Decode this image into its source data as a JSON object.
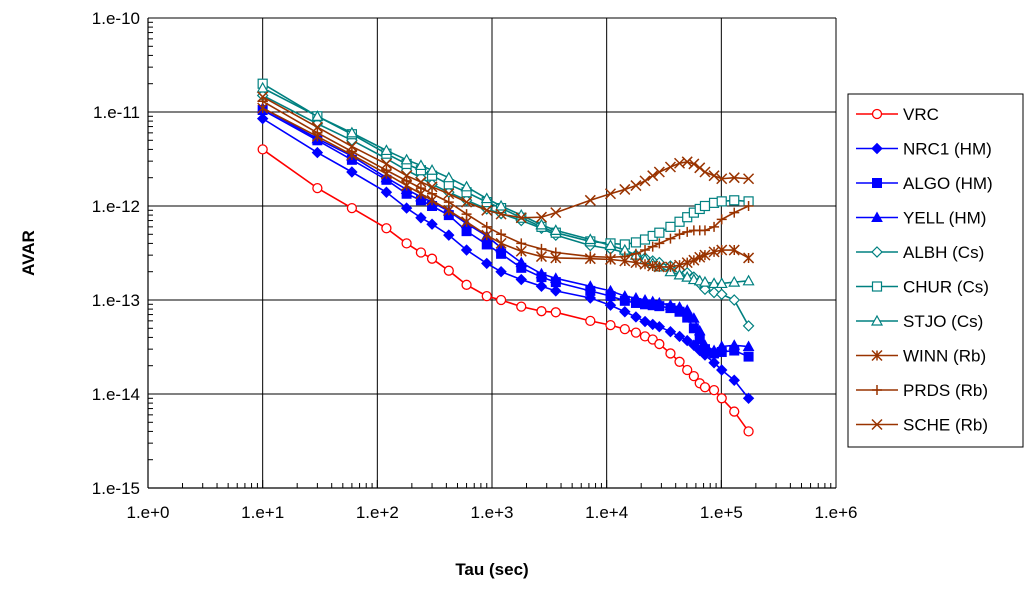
{
  "chart_data": {
    "type": "line",
    "title": "",
    "xlabel": "Tau (sec)",
    "ylabel": "AVAR",
    "x_scale": "log",
    "y_scale": "log",
    "xlim": [
      1,
      1000000
    ],
    "ylim": [
      1e-15,
      1e-10
    ],
    "x_ticks": [
      {
        "value": 1,
        "label": "1.e+0"
      },
      {
        "value": 10,
        "label": "1.e+1"
      },
      {
        "value": 100,
        "label": "1.e+2"
      },
      {
        "value": 1000,
        "label": "1.e+3"
      },
      {
        "value": 10000,
        "label": "1.e+4"
      },
      {
        "value": 100000,
        "label": "1.e+5"
      },
      {
        "value": 1000000,
        "label": "1.e+6"
      }
    ],
    "y_ticks": [
      {
        "value": 1e-10,
        "label": "1.e-10"
      },
      {
        "value": 1e-11,
        "label": "1.e-11"
      },
      {
        "value": 1e-12,
        "label": "1.e-12"
      },
      {
        "value": 1e-13,
        "label": "1.e-13"
      },
      {
        "value": 1e-14,
        "label": "1.e-14"
      },
      {
        "value": 1e-15,
        "label": "1.e-15"
      }
    ],
    "grid": true,
    "legend_position": "right",
    "series": [
      {
        "name": "VRC",
        "color": "#ff0000",
        "marker": "circle-open",
        "x": [
          10,
          30,
          60,
          120,
          180,
          240,
          300,
          420,
          600,
          900,
          1200,
          1800,
          2700,
          3600,
          7200,
          10800,
          14400,
          18000,
          21600,
          25200,
          28800,
          36000,
          43200,
          50400,
          57600,
          64800,
          72000,
          86400,
          100800,
          129600,
          172800
        ],
        "y": [
          4e-12,
          1.55e-12,
          9.5e-13,
          5.8e-13,
          4e-13,
          3.2e-13,
          2.75e-13,
          2.05e-13,
          1.45e-13,
          1.1e-13,
          1e-13,
          8.5e-14,
          7.6e-14,
          7.4e-14,
          6e-14,
          5.4e-14,
          4.9e-14,
          4.5e-14,
          4.1e-14,
          3.8e-14,
          3.4e-14,
          2.7e-14,
          2.2e-14,
          1.8e-14,
          1.55e-14,
          1.3e-14,
          1.18e-14,
          1.1e-14,
          9e-15,
          6.5e-15,
          4e-15
        ]
      },
      {
        "name": "NRC1 (HM)",
        "color": "#0000ff",
        "marker": "diamond",
        "x": [
          10,
          30,
          60,
          120,
          180,
          240,
          300,
          420,
          600,
          900,
          1200,
          1800,
          2700,
          3600,
          7200,
          10800,
          14400,
          18000,
          21600,
          25200,
          28800,
          36000,
          43200,
          50400,
          57600,
          64800,
          72000,
          86400,
          100800,
          129600,
          172800
        ],
        "y": [
          8.5e-12,
          3.7e-12,
          2.3e-12,
          1.4e-12,
          9.5e-13,
          7.5e-13,
          6.4e-13,
          4.9e-13,
          3.4e-13,
          2.45e-13,
          2e-13,
          1.65e-13,
          1.4e-13,
          1.25e-13,
          1.05e-13,
          8.8e-14,
          7.5e-14,
          6.6e-14,
          5.9e-14,
          5.5e-14,
          5.2e-14,
          4.6e-14,
          4.1e-14,
          3.7e-14,
          3.3e-14,
          2.9e-14,
          2.6e-14,
          2.15e-14,
          1.8e-14,
          1.4e-14,
          9e-15
        ]
      },
      {
        "name": "ALGO (HM)",
        "color": "#0000ff",
        "marker": "square",
        "x": [
          10,
          30,
          60,
          120,
          180,
          240,
          300,
          420,
          600,
          900,
          1200,
          1800,
          2700,
          3600,
          7200,
          10800,
          14400,
          18000,
          21600,
          25200,
          28800,
          36000,
          43200,
          50400,
          57600,
          64800,
          72000,
          86400,
          100800,
          129600,
          172800
        ],
        "y": [
          1.05e-11,
          5e-12,
          3.1e-12,
          1.9e-12,
          1.35e-12,
          1.15e-12,
          1e-12,
          8e-13,
          5.4e-13,
          3.9e-13,
          3.1e-13,
          2.2e-13,
          1.75e-13,
          1.55e-13,
          1.25e-13,
          1.1e-13,
          9.8e-14,
          9.3e-14,
          9e-14,
          8.8e-14,
          8.6e-14,
          8.2e-14,
          7.5e-14,
          6.5e-14,
          5e-14,
          3.8e-14,
          3e-14,
          2.7e-14,
          2.8e-14,
          2.9e-14,
          2.5e-14
        ]
      },
      {
        "name": "YELL (HM)",
        "color": "#0000ff",
        "marker": "triangle",
        "x": [
          10,
          30,
          60,
          120,
          180,
          240,
          300,
          420,
          600,
          900,
          1200,
          1800,
          2700,
          3600,
          7200,
          10800,
          14400,
          18000,
          21600,
          25200,
          28800,
          36000,
          43200,
          50400,
          57600,
          64800,
          72000,
          86400,
          100800,
          129600,
          172800
        ],
        "y": [
          1.1e-11,
          5.2e-12,
          3.4e-12,
          2e-12,
          1.5e-12,
          1.25e-12,
          1.1e-12,
          8.8e-13,
          6.5e-13,
          4.8e-13,
          3.6e-13,
          2.5e-13,
          1.9e-13,
          1.7e-13,
          1.4e-13,
          1.25e-13,
          1.1e-13,
          1.05e-13,
          1e-13,
          9.6e-14,
          9.3e-14,
          8.8e-14,
          8.4e-14,
          7.8e-14,
          6.4e-14,
          4.7e-14,
          3.3e-14,
          2.9e-14,
          3.2e-14,
          3.3e-14,
          3.2e-14
        ]
      },
      {
        "name": "ALBH (Cs)",
        "color": "#008080",
        "marker": "diamond-open",
        "x": [
          10,
          30,
          60,
          120,
          180,
          240,
          300,
          420,
          600,
          900,
          1200,
          1800,
          2700,
          3600,
          7200,
          10800,
          14400,
          18000,
          21600,
          25200,
          28800,
          36000,
          43200,
          50400,
          57600,
          64800,
          72000,
          86400,
          100800,
          129600,
          172800
        ],
        "y": [
          1.5e-11,
          7.5e-12,
          5e-12,
          3.2e-12,
          2.4e-12,
          2e-12,
          1.7e-12,
          1.4e-12,
          1.15e-12,
          9.3e-13,
          8.3e-13,
          7e-13,
          5.8e-13,
          4.9e-13,
          3.8e-13,
          3.5e-13,
          3.2e-13,
          3e-13,
          2.8e-13,
          2.6e-13,
          2.5e-13,
          2.3e-13,
          2.1e-13,
          1.95e-13,
          1.75e-13,
          1.5e-13,
          1.3e-13,
          1.2e-13,
          1.15e-13,
          1e-13,
          5.3e-14
        ]
      },
      {
        "name": "CHUR (Cs)",
        "color": "#008080",
        "marker": "square-open",
        "x": [
          10,
          30,
          60,
          120,
          180,
          240,
          300,
          420,
          600,
          900,
          1200,
          1800,
          2700,
          3600,
          7200,
          10800,
          14400,
          18000,
          21600,
          25200,
          28800,
          36000,
          43200,
          50400,
          57600,
          64800,
          72000,
          86400,
          100800,
          129600,
          172800
        ],
        "y": [
          2e-11,
          9e-12,
          5.8e-12,
          3.6e-12,
          2.8e-12,
          2.4e-12,
          2.1e-12,
          1.7e-12,
          1.4e-12,
          1.1e-12,
          9.5e-13,
          7.5e-13,
          6e-13,
          5.2e-13,
          4.2e-13,
          4e-13,
          3.9e-13,
          4.1e-13,
          4.4e-13,
          4.8e-13,
          5.2e-13,
          6e-13,
          6.8e-13,
          7.6e-13,
          8.5e-13,
          9.3e-13,
          1e-12,
          1.08e-12,
          1.12e-12,
          1.15e-12,
          1.12e-12
        ]
      },
      {
        "name": "STJO (Cs)",
        "color": "#008080",
        "marker": "triangle-open",
        "x": [
          10,
          30,
          60,
          120,
          180,
          240,
          300,
          420,
          600,
          900,
          1200,
          1800,
          2700,
          3600,
          7200,
          10800,
          14400,
          18000,
          21600,
          25200,
          28800,
          36000,
          43200,
          50400,
          57600,
          64800,
          72000,
          86400,
          100800,
          129600,
          172800
        ],
        "y": [
          1.8e-11,
          9e-12,
          6e-12,
          3.9e-12,
          3.1e-12,
          2.7e-12,
          2.4e-12,
          2e-12,
          1.6e-12,
          1.2e-12,
          1e-12,
          8e-13,
          6.3e-13,
          5.5e-13,
          4.4e-13,
          3.8e-13,
          3.4e-13,
          3e-13,
          2.7e-13,
          2.45e-13,
          2.25e-13,
          2e-13,
          1.85e-13,
          1.75e-13,
          1.65e-13,
          1.6e-13,
          1.55e-13,
          1.5e-13,
          1.5e-13,
          1.55e-13,
          1.6e-13
        ]
      },
      {
        "name": "WINN (Rb)",
        "color": "#993300",
        "marker": "star",
        "x": [
          10,
          30,
          60,
          120,
          180,
          240,
          300,
          420,
          600,
          900,
          1200,
          1800,
          2700,
          3600,
          7200,
          10800,
          14400,
          18000,
          21600,
          25200,
          28800,
          36000,
          43200,
          50400,
          57600,
          64800,
          72000,
          86400,
          100800,
          129600,
          172800
        ],
        "y": [
          1.1e-11,
          5.5e-12,
          3.5e-12,
          2.2e-12,
          1.65e-12,
          1.35e-12,
          1.15e-12,
          9e-13,
          6.8e-13,
          4.9e-13,
          4e-13,
          3.3e-13,
          2.9e-13,
          2.8e-13,
          2.75e-13,
          2.7e-13,
          2.6e-13,
          2.5e-13,
          2.4e-13,
          2.3e-13,
          2.25e-13,
          2.25e-13,
          2.35e-13,
          2.5e-13,
          2.65e-13,
          2.85e-13,
          3e-13,
          3.25e-13,
          3.4e-13,
          3.4e-13,
          2.8e-13
        ]
      },
      {
        "name": "PRDS (Rb)",
        "color": "#993300",
        "marker": "plus",
        "x": [
          10,
          30,
          60,
          120,
          180,
          240,
          300,
          420,
          600,
          900,
          1200,
          1800,
          2700,
          3600,
          7200,
          10800,
          14400,
          18000,
          21600,
          25200,
          28800,
          36000,
          43200,
          50400,
          57600,
          64800,
          72000,
          86400,
          100800,
          129600,
          172800
        ],
        "y": [
          1.3e-11,
          6e-12,
          3.8e-12,
          2.4e-12,
          1.85e-12,
          1.55e-12,
          1.35e-12,
          1.1e-12,
          8.2e-13,
          6e-13,
          5e-13,
          4e-13,
          3.5e-13,
          3.2e-13,
          2.9e-13,
          2.85e-13,
          2.9e-13,
          3.1e-13,
          3.4e-13,
          3.7e-13,
          4e-13,
          4.5e-13,
          5e-13,
          5.3e-13,
          5.5e-13,
          5.5e-13,
          5.5e-13,
          6e-13,
          7.2e-13,
          8.5e-13,
          1e-12
        ]
      },
      {
        "name": "SCHE (Rb)",
        "color": "#993300",
        "marker": "x",
        "x": [
          10,
          30,
          60,
          120,
          180,
          240,
          300,
          420,
          600,
          900,
          1200,
          1800,
          2700,
          3600,
          7200,
          10800,
          14400,
          18000,
          21600,
          25200,
          28800,
          36000,
          43200,
          50400,
          57600,
          64800,
          72000,
          86400,
          100800,
          129600,
          172800
        ],
        "y": [
          1.45e-11,
          6.9e-12,
          4.3e-12,
          2.8e-12,
          2.1e-12,
          1.8e-12,
          1.6e-12,
          1.35e-12,
          1.1e-12,
          9e-13,
          8.2e-13,
          7.5e-13,
          7.6e-13,
          8.5e-13,
          1.15e-12,
          1.35e-12,
          1.5e-12,
          1.65e-12,
          1.85e-12,
          2.1e-12,
          2.3e-12,
          2.6e-12,
          2.85e-12,
          2.95e-12,
          2.8e-12,
          2.55e-12,
          2.3e-12,
          2.1e-12,
          1.95e-12,
          2e-12,
          1.95e-12
        ]
      }
    ]
  }
}
